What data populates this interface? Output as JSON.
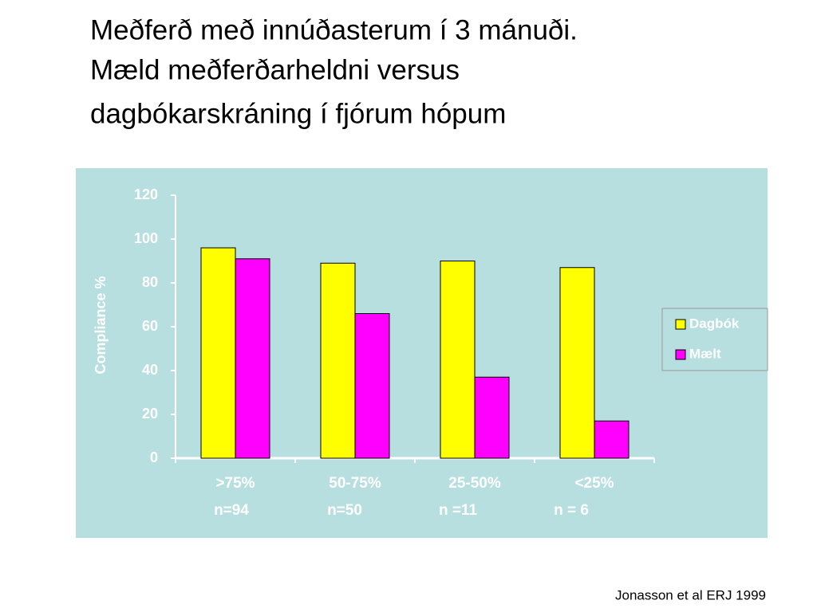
{
  "slide": {
    "title_lines": [
      "Meðferð með innúðasterum í 3 mánuði.",
      "Mæld meðferðarheldni   versus",
      "dagbókarskráning í fjórum hópum"
    ],
    "footer": "Jonasson et al  ERJ 1999"
  },
  "chart_data": {
    "type": "bar",
    "ylabel": "Compliance %",
    "categories": [
      ">75%",
      "50-75%",
      "25-50%",
      "<25%"
    ],
    "category_notes": [
      "n=94",
      "n=50",
      "n =11",
      "n = 6"
    ],
    "series": [
      {
        "name": "Dagbók",
        "color": "#ffff00",
        "values": [
          96,
          89,
          90,
          87
        ]
      },
      {
        "name": "Mælt",
        "color": "#ff00ff",
        "values": [
          91,
          66,
          37,
          17
        ]
      }
    ],
    "ylim": [
      0,
      120
    ],
    "yticks": [
      0,
      20,
      40,
      60,
      80,
      100,
      120
    ],
    "grid": false,
    "legend": "right"
  }
}
